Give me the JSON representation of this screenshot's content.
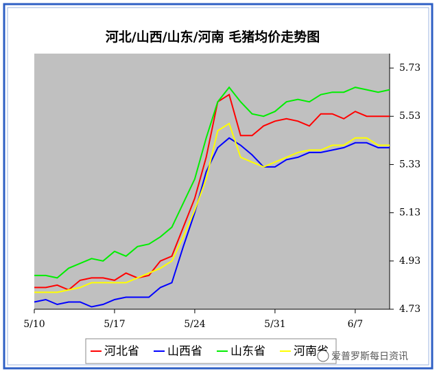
{
  "chart_data": {
    "type": "line",
    "title": "河北/山西/山东/河南 毛猪均价走势图",
    "categories": [
      "5/10",
      null,
      null,
      null,
      null,
      null,
      null,
      "5/17",
      null,
      null,
      null,
      null,
      null,
      null,
      "5/24",
      null,
      null,
      null,
      null,
      null,
      null,
      "5/31",
      null,
      null,
      null,
      null,
      null,
      null,
      "6/7",
      null,
      null,
      null
    ],
    "series": [
      {
        "name": "河北省",
        "color": "#ff0000",
        "values": [
          4.82,
          4.82,
          4.83,
          4.81,
          4.85,
          4.86,
          4.86,
          4.85,
          4.88,
          4.86,
          4.87,
          4.93,
          4.95,
          5.07,
          5.19,
          5.36,
          5.59,
          5.62,
          5.45,
          5.45,
          5.49,
          5.51,
          5.52,
          5.51,
          5.49,
          5.54,
          5.54,
          5.52,
          5.55,
          5.53,
          5.53,
          5.53
        ]
      },
      {
        "name": "山西省",
        "color": "#0000ff",
        "values": [
          4.76,
          4.77,
          4.75,
          4.76,
          4.76,
          4.74,
          4.75,
          4.77,
          4.78,
          4.78,
          4.78,
          4.82,
          4.84,
          4.99,
          5.13,
          5.3,
          5.4,
          5.44,
          5.41,
          5.37,
          5.32,
          5.32,
          5.35,
          5.36,
          5.38,
          5.38,
          5.39,
          5.4,
          5.42,
          5.42,
          5.4,
          5.4
        ]
      },
      {
        "name": "山东省",
        "color": "#00ee00",
        "values": [
          4.87,
          4.87,
          4.86,
          4.9,
          4.92,
          4.94,
          4.93,
          4.97,
          4.95,
          4.99,
          5.0,
          5.03,
          5.07,
          5.17,
          5.27,
          5.44,
          5.59,
          5.65,
          5.59,
          5.54,
          5.53,
          5.55,
          5.59,
          5.6,
          5.59,
          5.62,
          5.63,
          5.63,
          5.65,
          5.64,
          5.63,
          5.64
        ]
      },
      {
        "name": "河南省",
        "color": "#ffff00",
        "values": [
          4.8,
          4.8,
          4.8,
          4.81,
          4.82,
          4.84,
          4.84,
          4.84,
          4.84,
          4.86,
          4.88,
          4.9,
          4.93,
          5.03,
          5.14,
          5.27,
          5.47,
          5.5,
          5.36,
          5.34,
          5.32,
          5.34,
          5.36,
          5.38,
          5.39,
          5.39,
          5.41,
          5.41,
          5.44,
          5.44,
          5.41,
          5.41
        ]
      }
    ],
    "ylim": [
      4.73,
      5.79
    ],
    "yticks": [
      4.73,
      4.93,
      5.13,
      5.33,
      5.53,
      5.73
    ],
    "plot_background": "#c0c0c0",
    "watermark": "爱普罗斯每日资讯"
  }
}
